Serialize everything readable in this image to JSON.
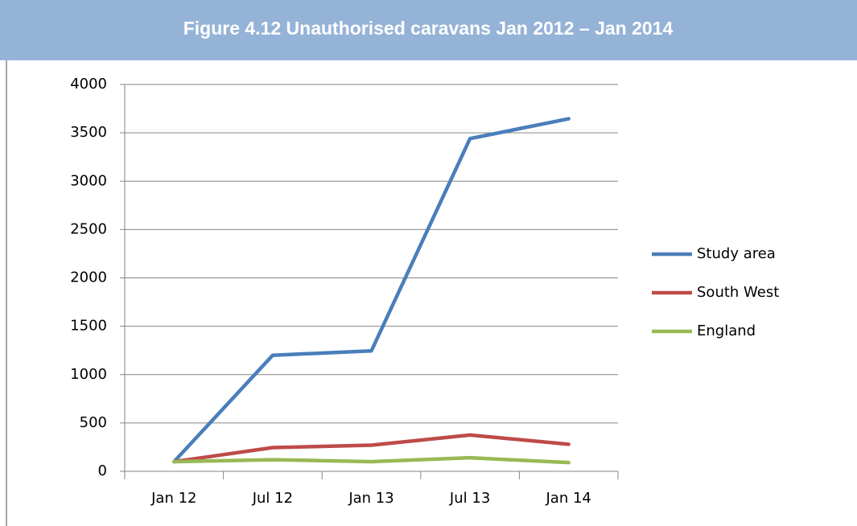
{
  "chart_data": {
    "type": "line",
    "title": "Figure 4.12 Unauthorised caravans Jan 2012 – Jan 2014",
    "categories": [
      "Jan 12",
      "Jul 12",
      "Jan 13",
      "Jul 13",
      "Jan 14"
    ],
    "series": [
      {
        "name": "Study area",
        "color": "#4a7ebb",
        "values": [
          100,
          1200,
          1245,
          3440,
          3645
        ]
      },
      {
        "name": "South West",
        "color": "#be4b48",
        "values": [
          100,
          245,
          270,
          375,
          280
        ]
      },
      {
        "name": "England",
        "color": "#98b954",
        "values": [
          100,
          120,
          100,
          140,
          90
        ]
      }
    ],
    "ylim": [
      0,
      4000
    ],
    "yticks": [
      0,
      500,
      1000,
      1500,
      2000,
      2500,
      3000,
      3500,
      4000
    ],
    "grid": true,
    "legend": "right"
  }
}
